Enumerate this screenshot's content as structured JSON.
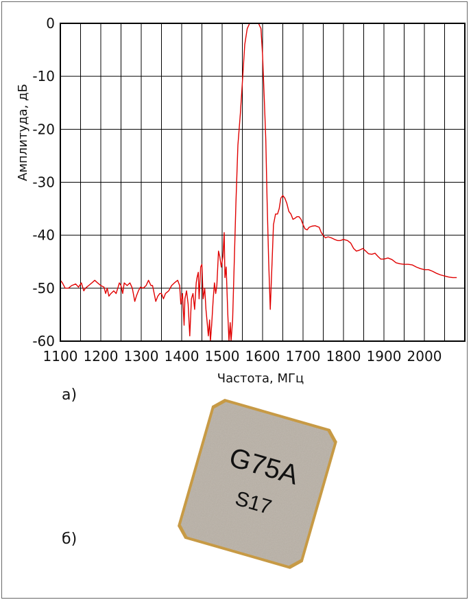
{
  "chart_data": {
    "type": "line",
    "xlabel": "Частота, МГц",
    "ylabel": "Амплитуда, дБ",
    "xlim": [
      1100,
      2100
    ],
    "ylim": [
      -60,
      0
    ],
    "x_ticks": [
      1100,
      1200,
      1300,
      1400,
      1500,
      1600,
      1700,
      1800,
      1900,
      2000
    ],
    "y_ticks": [
      0,
      -10,
      -20,
      -30,
      -40,
      -50,
      -60
    ],
    "grid": true,
    "series": [
      {
        "color": "#e00000",
        "points": [
          [
            1097,
            -48.5
          ],
          [
            1105,
            -49
          ],
          [
            1112,
            -50
          ],
          [
            1120,
            -50
          ],
          [
            1128,
            -49.5
          ],
          [
            1138,
            -49.2
          ],
          [
            1145,
            -49.8
          ],
          [
            1152,
            -49
          ],
          [
            1158,
            -50.5
          ],
          [
            1162,
            -50
          ],
          [
            1170,
            -49.5
          ],
          [
            1178,
            -49
          ],
          [
            1185,
            -48.5
          ],
          [
            1192,
            -49
          ],
          [
            1200,
            -49.5
          ],
          [
            1208,
            -49.8
          ],
          [
            1212,
            -51
          ],
          [
            1216,
            -50
          ],
          [
            1220,
            -51.5
          ],
          [
            1225,
            -51
          ],
          [
            1232,
            -50.5
          ],
          [
            1238,
            -51
          ],
          [
            1242,
            -50
          ],
          [
            1246,
            -49
          ],
          [
            1250,
            -49.5
          ],
          [
            1254,
            -51
          ],
          [
            1258,
            -49
          ],
          [
            1265,
            -49.5
          ],
          [
            1272,
            -49
          ],
          [
            1278,
            -50
          ],
          [
            1284,
            -52.5
          ],
          [
            1288,
            -51.5
          ],
          [
            1293,
            -50.5
          ],
          [
            1298,
            -49.8
          ],
          [
            1305,
            -50
          ],
          [
            1312,
            -49.5
          ],
          [
            1318,
            -48.5
          ],
          [
            1324,
            -49.5
          ],
          [
            1328,
            -49.5
          ],
          [
            1332,
            -51
          ],
          [
            1336,
            -52.5
          ],
          [
            1341,
            -51.5
          ],
          [
            1346,
            -51
          ],
          [
            1350,
            -51
          ],
          [
            1355,
            -52
          ],
          [
            1360,
            -51
          ],
          [
            1368,
            -50.5
          ],
          [
            1375,
            -49.5
          ],
          [
            1382,
            -49
          ],
          [
            1390,
            -48.5
          ],
          [
            1395,
            -49.5
          ],
          [
            1398,
            -53
          ],
          [
            1402,
            -51
          ],
          [
            1406,
            -57
          ],
          [
            1408,
            -52
          ],
          [
            1412,
            -50.5
          ],
          [
            1416,
            -53
          ],
          [
            1420,
            -59
          ],
          [
            1424,
            -52
          ],
          [
            1428,
            -51
          ],
          [
            1432,
            -54
          ],
          [
            1436,
            -49
          ],
          [
            1438,
            -48
          ],
          [
            1441,
            -47
          ],
          [
            1443,
            -52
          ],
          [
            1447,
            -46
          ],
          [
            1450,
            -45.5
          ],
          [
            1453,
            -52
          ],
          [
            1457,
            -50
          ],
          [
            1460,
            -54
          ],
          [
            1463,
            -56.5
          ],
          [
            1466,
            -59
          ],
          [
            1469,
            -56
          ],
          [
            1471,
            -60
          ],
          [
            1474,
            -57
          ],
          [
            1478,
            -52
          ],
          [
            1481,
            -49
          ],
          [
            1484,
            -51
          ],
          [
            1487,
            -49.5
          ],
          [
            1491,
            -43
          ],
          [
            1494,
            -44
          ],
          [
            1498,
            -46
          ],
          [
            1502,
            -44
          ],
          [
            1505,
            -39.5
          ],
          [
            1507,
            -48
          ],
          [
            1510,
            -46
          ],
          [
            1514,
            -55
          ],
          [
            1517,
            -61
          ],
          [
            1520,
            -56.5
          ],
          [
            1522,
            -61
          ],
          [
            1526,
            -56
          ],
          [
            1530,
            -45
          ],
          [
            1534,
            -34
          ],
          [
            1539,
            -23
          ],
          [
            1545,
            -17
          ],
          [
            1551,
            -10
          ],
          [
            1556,
            -4
          ],
          [
            1562,
            -1
          ],
          [
            1568,
            0
          ],
          [
            1580,
            0
          ],
          [
            1590,
            0
          ],
          [
            1596,
            -1
          ],
          [
            1600,
            -6
          ],
          [
            1604,
            -14
          ],
          [
            1608,
            -22
          ],
          [
            1611,
            -33
          ],
          [
            1615,
            -45
          ],
          [
            1619,
            -54
          ],
          [
            1622,
            -48
          ],
          [
            1627,
            -38
          ],
          [
            1632,
            -36
          ],
          [
            1637,
            -36
          ],
          [
            1641,
            -35
          ],
          [
            1645,
            -33
          ],
          [
            1650,
            -32.5
          ],
          [
            1655,
            -33
          ],
          [
            1660,
            -34
          ],
          [
            1665,
            -35.5
          ],
          [
            1670,
            -36
          ],
          [
            1675,
            -37
          ],
          [
            1680,
            -36.8
          ],
          [
            1685,
            -36.5
          ],
          [
            1690,
            -36.5
          ],
          [
            1695,
            -37
          ],
          [
            1700,
            -38
          ],
          [
            1705,
            -38.8
          ],
          [
            1710,
            -39
          ],
          [
            1715,
            -38.5
          ],
          [
            1722,
            -38.3
          ],
          [
            1730,
            -38.2
          ],
          [
            1740,
            -38.5
          ],
          [
            1745,
            -39.5
          ],
          [
            1750,
            -40
          ],
          [
            1755,
            -40.5
          ],
          [
            1762,
            -40.3
          ],
          [
            1770,
            -40.5
          ],
          [
            1778,
            -40.8
          ],
          [
            1785,
            -41
          ],
          [
            1792,
            -41
          ],
          [
            1800,
            -40.8
          ],
          [
            1810,
            -41
          ],
          [
            1818,
            -41.5
          ],
          [
            1825,
            -42.5
          ],
          [
            1832,
            -43
          ],
          [
            1840,
            -42.8
          ],
          [
            1848,
            -42.5
          ],
          [
            1855,
            -43
          ],
          [
            1862,
            -43.5
          ],
          [
            1870,
            -43.6
          ],
          [
            1878,
            -43.4
          ],
          [
            1885,
            -44
          ],
          [
            1892,
            -44.5
          ],
          [
            1900,
            -44.5
          ],
          [
            1910,
            -44.3
          ],
          [
            1920,
            -44.6
          ],
          [
            1930,
            -45.2
          ],
          [
            1940,
            -45.4
          ],
          [
            1950,
            -45.5
          ],
          [
            1960,
            -45.5
          ],
          [
            1970,
            -45.6
          ],
          [
            1980,
            -46
          ],
          [
            1990,
            -46.3
          ],
          [
            2000,
            -46.5
          ],
          [
            2010,
            -46.5
          ],
          [
            2020,
            -46.8
          ],
          [
            2030,
            -47.2
          ],
          [
            2040,
            -47.5
          ],
          [
            2050,
            -47.7
          ],
          [
            2060,
            -47.9
          ],
          [
            2070,
            -48
          ],
          [
            2080,
            -48
          ]
        ]
      }
    ]
  },
  "labels": {
    "panel_a": "а)",
    "panel_b": "б)"
  },
  "chip": {
    "line1": "G75A",
    "line2": "S17",
    "color": "#b9b1a6",
    "edge_color": "#c79a45"
  }
}
